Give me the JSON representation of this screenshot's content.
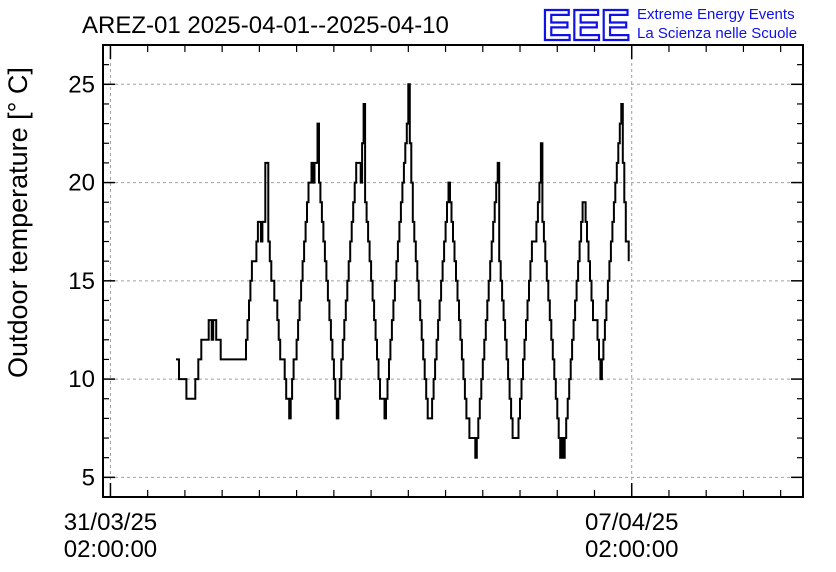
{
  "chart_data": {
    "type": "line",
    "title": "AREZ-01 2025-04-01--2025-04-10",
    "ylabel": "Outdoor temperature [° C]",
    "xlabel": "",
    "ylim": [
      4,
      27
    ],
    "xlim": [
      -0.1,
      9.3
    ],
    "grid": true,
    "step": true,
    "yticks": [
      5,
      10,
      15,
      20,
      25
    ],
    "xticks": [
      {
        "x": 0,
        "line1": "31/03/25",
        "line2": "02:00:00"
      },
      {
        "x": 7,
        "line1": "07/04/25",
        "line2": "02:00:00"
      }
    ],
    "series": [
      {
        "points": [
          [
            0.88,
            11
          ],
          [
            0.92,
            10
          ],
          [
            1.0,
            10
          ],
          [
            1.02,
            9
          ],
          [
            1.12,
            9
          ],
          [
            1.14,
            10
          ],
          [
            1.18,
            11
          ],
          [
            1.22,
            12
          ],
          [
            1.3,
            12
          ],
          [
            1.32,
            13
          ],
          [
            1.36,
            12
          ],
          [
            1.38,
            13
          ],
          [
            1.42,
            12
          ],
          [
            1.46,
            12
          ],
          [
            1.48,
            11
          ],
          [
            1.8,
            11
          ],
          [
            1.82,
            12
          ],
          [
            1.84,
            13
          ],
          [
            1.86,
            14
          ],
          [
            1.88,
            15
          ],
          [
            1.9,
            16
          ],
          [
            1.94,
            16
          ],
          [
            1.96,
            17
          ],
          [
            1.98,
            18
          ],
          [
            2.02,
            17
          ],
          [
            2.04,
            18
          ],
          [
            2.08,
            21
          ],
          [
            2.12,
            17
          ],
          [
            2.14,
            16
          ],
          [
            2.16,
            15
          ],
          [
            2.2,
            14
          ],
          [
            2.24,
            13
          ],
          [
            2.26,
            12
          ],
          [
            2.28,
            11
          ],
          [
            2.32,
            11
          ],
          [
            2.34,
            10
          ],
          [
            2.36,
            9
          ],
          [
            2.4,
            8
          ],
          [
            2.42,
            9
          ],
          [
            2.44,
            10
          ],
          [
            2.46,
            11
          ],
          [
            2.5,
            12
          ],
          [
            2.52,
            13
          ],
          [
            2.54,
            14
          ],
          [
            2.56,
            15
          ],
          [
            2.58,
            16
          ],
          [
            2.6,
            17
          ],
          [
            2.62,
            18
          ],
          [
            2.64,
            19
          ],
          [
            2.66,
            20
          ],
          [
            2.7,
            21
          ],
          [
            2.72,
            20
          ],
          [
            2.74,
            21
          ],
          [
            2.78,
            23
          ],
          [
            2.8,
            20
          ],
          [
            2.82,
            19
          ],
          [
            2.84,
            18
          ],
          [
            2.86,
            17
          ],
          [
            2.88,
            16
          ],
          [
            2.9,
            15
          ],
          [
            2.92,
            14
          ],
          [
            2.94,
            13
          ],
          [
            2.96,
            12
          ],
          [
            2.98,
            11
          ],
          [
            3.0,
            10
          ],
          [
            3.02,
            9
          ],
          [
            3.04,
            8
          ],
          [
            3.06,
            9
          ],
          [
            3.08,
            10
          ],
          [
            3.1,
            11
          ],
          [
            3.12,
            12
          ],
          [
            3.14,
            13
          ],
          [
            3.16,
            14
          ],
          [
            3.18,
            15
          ],
          [
            3.2,
            16
          ],
          [
            3.22,
            17
          ],
          [
            3.24,
            18
          ],
          [
            3.26,
            19
          ],
          [
            3.28,
            20
          ],
          [
            3.3,
            21
          ],
          [
            3.34,
            21
          ],
          [
            3.36,
            20
          ],
          [
            3.38,
            22
          ],
          [
            3.4,
            24
          ],
          [
            3.42,
            19
          ],
          [
            3.44,
            18
          ],
          [
            3.46,
            17
          ],
          [
            3.48,
            16
          ],
          [
            3.5,
            15
          ],
          [
            3.52,
            14
          ],
          [
            3.54,
            13
          ],
          [
            3.56,
            12
          ],
          [
            3.58,
            11
          ],
          [
            3.6,
            10
          ],
          [
            3.62,
            9
          ],
          [
            3.66,
            9
          ],
          [
            3.68,
            8
          ],
          [
            3.7,
            9
          ],
          [
            3.72,
            10
          ],
          [
            3.74,
            11
          ],
          [
            3.76,
            12
          ],
          [
            3.78,
            13
          ],
          [
            3.8,
            14
          ],
          [
            3.82,
            15
          ],
          [
            3.84,
            16
          ],
          [
            3.86,
            17
          ],
          [
            3.88,
            18
          ],
          [
            3.9,
            19
          ],
          [
            3.92,
            20
          ],
          [
            3.94,
            21
          ],
          [
            3.96,
            22
          ],
          [
            3.98,
            23
          ],
          [
            4.0,
            25
          ],
          [
            4.02,
            22
          ],
          [
            4.04,
            20
          ],
          [
            4.06,
            18
          ],
          [
            4.08,
            17
          ],
          [
            4.1,
            16
          ],
          [
            4.12,
            15
          ],
          [
            4.14,
            14
          ],
          [
            4.16,
            13
          ],
          [
            4.18,
            12
          ],
          [
            4.2,
            11
          ],
          [
            4.22,
            10
          ],
          [
            4.24,
            9
          ],
          [
            4.26,
            8
          ],
          [
            4.3,
            8
          ],
          [
            4.32,
            9
          ],
          [
            4.34,
            10
          ],
          [
            4.36,
            11
          ],
          [
            4.38,
            12
          ],
          [
            4.4,
            13
          ],
          [
            4.42,
            14
          ],
          [
            4.44,
            15
          ],
          [
            4.46,
            16
          ],
          [
            4.48,
            17
          ],
          [
            4.5,
            18
          ],
          [
            4.52,
            19
          ],
          [
            4.54,
            20
          ],
          [
            4.56,
            19
          ],
          [
            4.58,
            18
          ],
          [
            4.6,
            17
          ],
          [
            4.62,
            16
          ],
          [
            4.64,
            15
          ],
          [
            4.66,
            14
          ],
          [
            4.68,
            13
          ],
          [
            4.7,
            12
          ],
          [
            4.72,
            11
          ],
          [
            4.74,
            10
          ],
          [
            4.76,
            9
          ],
          [
            4.78,
            8
          ],
          [
            4.8,
            8
          ],
          [
            4.82,
            7
          ],
          [
            4.88,
            7
          ],
          [
            4.9,
            6
          ],
          [
            4.92,
            7
          ],
          [
            4.94,
            8
          ],
          [
            4.96,
            9
          ],
          [
            4.98,
            10
          ],
          [
            5.0,
            11
          ],
          [
            5.02,
            12
          ],
          [
            5.04,
            13
          ],
          [
            5.06,
            14
          ],
          [
            5.08,
            15
          ],
          [
            5.1,
            16
          ],
          [
            5.12,
            17
          ],
          [
            5.14,
            18
          ],
          [
            5.16,
            19
          ],
          [
            5.18,
            20
          ],
          [
            5.2,
            21
          ],
          [
            5.22,
            16
          ],
          [
            5.24,
            15
          ],
          [
            5.26,
            14
          ],
          [
            5.28,
            13
          ],
          [
            5.3,
            12
          ],
          [
            5.32,
            11
          ],
          [
            5.34,
            10
          ],
          [
            5.36,
            9
          ],
          [
            5.38,
            8
          ],
          [
            5.4,
            7
          ],
          [
            5.46,
            7
          ],
          [
            5.48,
            8
          ],
          [
            5.5,
            9
          ],
          [
            5.52,
            10
          ],
          [
            5.54,
            11
          ],
          [
            5.56,
            12
          ],
          [
            5.58,
            13
          ],
          [
            5.6,
            14
          ],
          [
            5.62,
            15
          ],
          [
            5.64,
            16
          ],
          [
            5.66,
            17
          ],
          [
            5.7,
            17
          ],
          [
            5.72,
            18
          ],
          [
            5.74,
            19
          ],
          [
            5.76,
            20
          ],
          [
            5.78,
            22
          ],
          [
            5.8,
            18
          ],
          [
            5.82,
            17
          ],
          [
            5.84,
            16
          ],
          [
            5.86,
            15
          ],
          [
            5.88,
            14
          ],
          [
            5.9,
            13
          ],
          [
            5.92,
            12
          ],
          [
            5.94,
            11
          ],
          [
            5.96,
            10
          ],
          [
            5.98,
            9
          ],
          [
            6.0,
            8
          ],
          [
            6.02,
            7
          ],
          [
            6.04,
            6
          ],
          [
            6.06,
            7
          ],
          [
            6.08,
            6
          ],
          [
            6.1,
            7
          ],
          [
            6.12,
            8
          ],
          [
            6.14,
            9
          ],
          [
            6.16,
            10
          ],
          [
            6.18,
            11
          ],
          [
            6.2,
            12
          ],
          [
            6.22,
            13
          ],
          [
            6.24,
            14
          ],
          [
            6.26,
            15
          ],
          [
            6.28,
            16
          ],
          [
            6.3,
            17
          ],
          [
            6.32,
            18
          ],
          [
            6.34,
            19
          ],
          [
            6.38,
            18
          ],
          [
            6.4,
            17
          ],
          [
            6.42,
            16
          ],
          [
            6.44,
            15
          ],
          [
            6.46,
            14
          ],
          [
            6.48,
            13
          ],
          [
            6.52,
            13
          ],
          [
            6.54,
            12
          ],
          [
            6.56,
            11
          ],
          [
            6.58,
            10
          ],
          [
            6.6,
            11
          ],
          [
            6.62,
            12
          ],
          [
            6.64,
            13
          ],
          [
            6.66,
            14
          ],
          [
            6.68,
            15
          ],
          [
            6.7,
            16
          ],
          [
            6.72,
            17
          ],
          [
            6.74,
            18
          ],
          [
            6.76,
            19
          ],
          [
            6.78,
            20
          ],
          [
            6.8,
            21
          ],
          [
            6.82,
            22
          ],
          [
            6.84,
            23
          ],
          [
            6.86,
            24
          ],
          [
            6.88,
            21
          ],
          [
            6.9,
            19
          ],
          [
            6.92,
            17
          ],
          [
            6.96,
            16
          ]
        ]
      }
    ]
  },
  "logo": {
    "mark": "EEE",
    "line1": "Extreme Energy Events",
    "line2": "La Scienza nelle Scuole"
  },
  "colors": {
    "line": "#000000",
    "grid": "#a0a0a0",
    "logo": "#1010e8"
  }
}
